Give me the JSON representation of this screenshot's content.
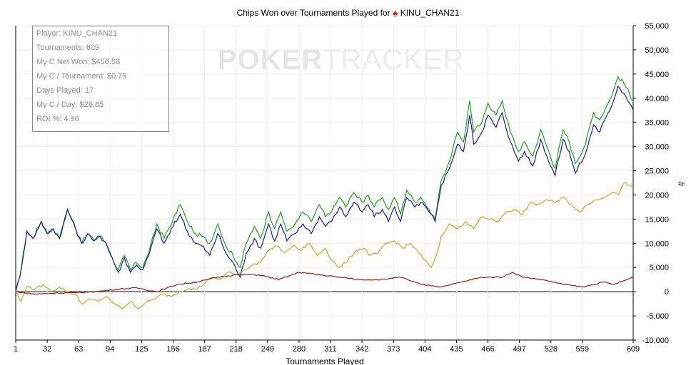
{
  "title_prefix": "Chips Won over Tournaments Played for",
  "player_name": "KINU_CHAN21",
  "suit_icon": "spade-icon",
  "watermark": {
    "bold": "POKER",
    "thin": "TRACKER"
  },
  "stats": [
    "Player: KINU_CHAN21",
    "Tournaments: 609",
    "My C Net Won: $456.53",
    "My C / Tournament: $0.75",
    "Days Played: 17",
    "My C / Day: $26.85",
    "ROI %: 4.96"
  ],
  "chart_data": {
    "type": "line",
    "title": "Chips Won over Tournaments Played for KINU_CHAN21",
    "xlabel": "Tournaments Played",
    "ylabel": "#",
    "xlim": [
      1,
      609
    ],
    "ylim": [
      -10000,
      55000
    ],
    "x_ticks": [
      1,
      32,
      63,
      94,
      125,
      156,
      187,
      218,
      249,
      280,
      311,
      342,
      373,
      404,
      435,
      466,
      497,
      528,
      559,
      609
    ],
    "y_ticks": [
      -10000,
      -5000,
      0,
      5000,
      10000,
      15000,
      20000,
      25000,
      30000,
      35000,
      40000,
      45000,
      50000,
      55000
    ],
    "y_tick_labels": [
      "-10,000",
      "-5,000",
      "0",
      "5,000",
      "10,000",
      "15,000",
      "20,000",
      "25,000",
      "30,000",
      "35,000",
      "40,000",
      "45,000",
      "50,000",
      "55,000"
    ],
    "grid": true,
    "series": [
      {
        "color": "#1aa31a",
        "points": [
          [
            1,
            0
          ],
          [
            5,
            3000
          ],
          [
            12,
            12500
          ],
          [
            18,
            11000
          ],
          [
            26,
            14500
          ],
          [
            32,
            12000
          ],
          [
            38,
            13000
          ],
          [
            44,
            11000
          ],
          [
            52,
            17000
          ],
          [
            60,
            13000
          ],
          [
            66,
            10000
          ],
          [
            72,
            12000
          ],
          [
            78,
            10500
          ],
          [
            84,
            11500
          ],
          [
            90,
            10000
          ],
          [
            96,
            7000
          ],
          [
            102,
            4500
          ],
          [
            108,
            7500
          ],
          [
            114,
            4500
          ],
          [
            120,
            6000
          ],
          [
            126,
            5000
          ],
          [
            132,
            8000
          ],
          [
            140,
            14000
          ],
          [
            147,
            11000
          ],
          [
            156,
            15000
          ],
          [
            163,
            18000
          ],
          [
            170,
            14500
          ],
          [
            178,
            12000
          ],
          [
            184,
            11500
          ],
          [
            192,
            10000
          ],
          [
            200,
            14000
          ],
          [
            208,
            9500
          ],
          [
            215,
            7500
          ],
          [
            222,
            5000
          ],
          [
            228,
            10000
          ],
          [
            236,
            13500
          ],
          [
            242,
            11000
          ],
          [
            250,
            16500
          ],
          [
            256,
            13000
          ],
          [
            262,
            16500
          ],
          [
            268,
            12500
          ],
          [
            276,
            14000
          ],
          [
            284,
            16500
          ],
          [
            292,
            14500
          ],
          [
            300,
            18000
          ],
          [
            306,
            15500
          ],
          [
            312,
            16500
          ],
          [
            320,
            19500
          ],
          [
            326,
            17500
          ],
          [
            334,
            20500
          ],
          [
            342,
            18500
          ],
          [
            348,
            20000
          ],
          [
            354,
            17500
          ],
          [
            362,
            19500
          ],
          [
            368,
            17000
          ],
          [
            374,
            19500
          ],
          [
            380,
            16000
          ],
          [
            386,
            21000
          ],
          [
            394,
            18500
          ],
          [
            400,
            19500
          ],
          [
            408,
            17000
          ],
          [
            414,
            15000
          ],
          [
            420,
            23000
          ],
          [
            428,
            27000
          ],
          [
            436,
            33000
          ],
          [
            442,
            31000
          ],
          [
            448,
            39500
          ],
          [
            452,
            33000
          ],
          [
            460,
            35000
          ],
          [
            466,
            39000
          ],
          [
            474,
            36500
          ],
          [
            480,
            39500
          ],
          [
            488,
            33000
          ],
          [
            496,
            29000
          ],
          [
            502,
            31000
          ],
          [
            510,
            28000
          ],
          [
            518,
            33500
          ],
          [
            524,
            30000
          ],
          [
            532,
            25500
          ],
          [
            540,
            33500
          ],
          [
            546,
            31000
          ],
          [
            552,
            26500
          ],
          [
            562,
            30500
          ],
          [
            570,
            37000
          ],
          [
            576,
            35500
          ],
          [
            582,
            38000
          ],
          [
            588,
            40500
          ],
          [
            594,
            44500
          ],
          [
            600,
            43000
          ],
          [
            609,
            39500
          ]
        ]
      },
      {
        "color": "#1a1a9c",
        "points": [
          [
            1,
            0
          ],
          [
            5,
            3000
          ],
          [
            12,
            12500
          ],
          [
            18,
            11000
          ],
          [
            26,
            14500
          ],
          [
            32,
            12000
          ],
          [
            38,
            13000
          ],
          [
            44,
            11000
          ],
          [
            52,
            17000
          ],
          [
            60,
            13000
          ],
          [
            66,
            10000
          ],
          [
            72,
            12000
          ],
          [
            78,
            10500
          ],
          [
            84,
            11500
          ],
          [
            90,
            10000
          ],
          [
            96,
            7000
          ],
          [
            102,
            4000
          ],
          [
            108,
            7000
          ],
          [
            114,
            4000
          ],
          [
            120,
            5500
          ],
          [
            126,
            4500
          ],
          [
            132,
            7500
          ],
          [
            140,
            13000
          ],
          [
            147,
            10000
          ],
          [
            156,
            13500
          ],
          [
            163,
            16000
          ],
          [
            170,
            12500
          ],
          [
            178,
            10000
          ],
          [
            184,
            9500
          ],
          [
            192,
            7500
          ],
          [
            200,
            12000
          ],
          [
            208,
            8000
          ],
          [
            215,
            6000
          ],
          [
            222,
            3000
          ],
          [
            228,
            8000
          ],
          [
            236,
            11000
          ],
          [
            242,
            9000
          ],
          [
            250,
            14000
          ],
          [
            256,
            10500
          ],
          [
            262,
            14000
          ],
          [
            268,
            10500
          ],
          [
            276,
            12000
          ],
          [
            284,
            14000
          ],
          [
            292,
            12000
          ],
          [
            300,
            15500
          ],
          [
            306,
            13500
          ],
          [
            312,
            14500
          ],
          [
            320,
            17500
          ],
          [
            326,
            15500
          ],
          [
            334,
            18500
          ],
          [
            342,
            16500
          ],
          [
            348,
            18000
          ],
          [
            354,
            15500
          ],
          [
            362,
            17000
          ],
          [
            368,
            14500
          ],
          [
            374,
            17500
          ],
          [
            380,
            14500
          ],
          [
            386,
            19500
          ],
          [
            394,
            17500
          ],
          [
            400,
            18500
          ],
          [
            408,
            16500
          ],
          [
            414,
            14500
          ],
          [
            420,
            22000
          ],
          [
            428,
            25500
          ],
          [
            436,
            30500
          ],
          [
            442,
            29000
          ],
          [
            448,
            36500
          ],
          [
            452,
            30500
          ],
          [
            460,
            33000
          ],
          [
            466,
            36500
          ],
          [
            474,
            34000
          ],
          [
            480,
            37000
          ],
          [
            488,
            31000
          ],
          [
            496,
            27000
          ],
          [
            502,
            29000
          ],
          [
            510,
            26000
          ],
          [
            518,
            31500
          ],
          [
            524,
            28000
          ],
          [
            532,
            24000
          ],
          [
            540,
            31500
          ],
          [
            546,
            29000
          ],
          [
            552,
            24500
          ],
          [
            562,
            28500
          ],
          [
            570,
            34500
          ],
          [
            576,
            33000
          ],
          [
            582,
            36000
          ],
          [
            588,
            38500
          ],
          [
            594,
            42500
          ],
          [
            600,
            41000
          ],
          [
            609,
            37500
          ]
        ]
      },
      {
        "color": "#b1b128",
        "points": [
          [
            1,
            0
          ],
          [
            6,
            -2000
          ],
          [
            12,
            1000
          ],
          [
            20,
            500
          ],
          [
            28,
            1500
          ],
          [
            36,
            0
          ],
          [
            44,
            1000
          ],
          [
            52,
            0
          ],
          [
            60,
            -500
          ],
          [
            66,
            -2500
          ],
          [
            74,
            -1500
          ],
          [
            82,
            -2000
          ],
          [
            90,
            -1000
          ],
          [
            98,
            -2500
          ],
          [
            106,
            -3500
          ],
          [
            114,
            -2000
          ],
          [
            122,
            -3500
          ],
          [
            130,
            -2000
          ],
          [
            138,
            -1500
          ],
          [
            146,
            -500
          ],
          [
            154,
            -1000
          ],
          [
            162,
            0
          ],
          [
            170,
            500
          ],
          [
            178,
            500
          ],
          [
            186,
            1500
          ],
          [
            194,
            3000
          ],
          [
            202,
            2500
          ],
          [
            210,
            4000
          ],
          [
            218,
            3500
          ],
          [
            226,
            4500
          ],
          [
            234,
            5500
          ],
          [
            242,
            6000
          ],
          [
            250,
            8500
          ],
          [
            258,
            9500
          ],
          [
            266,
            8000
          ],
          [
            274,
            9500
          ],
          [
            282,
            8500
          ],
          [
            290,
            10000
          ],
          [
            298,
            7500
          ],
          [
            306,
            9000
          ],
          [
            312,
            6500
          ],
          [
            320,
            5000
          ],
          [
            328,
            6500
          ],
          [
            336,
            8500
          ],
          [
            344,
            9000
          ],
          [
            350,
            7500
          ],
          [
            358,
            8000
          ],
          [
            366,
            10000
          ],
          [
            374,
            10500
          ],
          [
            382,
            9000
          ],
          [
            390,
            10000
          ],
          [
            398,
            8000
          ],
          [
            404,
            6500
          ],
          [
            410,
            5000
          ],
          [
            416,
            8000
          ],
          [
            420,
            11500
          ],
          [
            428,
            14000
          ],
          [
            436,
            13000
          ],
          [
            444,
            14500
          ],
          [
            452,
            13000
          ],
          [
            460,
            15500
          ],
          [
            468,
            15000
          ],
          [
            476,
            14500
          ],
          [
            484,
            16500
          ],
          [
            492,
            17000
          ],
          [
            500,
            16000
          ],
          [
            508,
            18500
          ],
          [
            516,
            18000
          ],
          [
            524,
            19000
          ],
          [
            532,
            18500
          ],
          [
            540,
            19500
          ],
          [
            548,
            18000
          ],
          [
            556,
            16500
          ],
          [
            564,
            18000
          ],
          [
            572,
            19000
          ],
          [
            580,
            19500
          ],
          [
            588,
            20500
          ],
          [
            594,
            20000
          ],
          [
            600,
            22500
          ],
          [
            609,
            21500
          ]
        ]
      },
      {
        "color": "#9c1a1a",
        "points": [
          [
            1,
            0
          ],
          [
            20,
            -500
          ],
          [
            40,
            -300
          ],
          [
            60,
            -200
          ],
          [
            80,
            0
          ],
          [
            100,
            500
          ],
          [
            120,
            800
          ],
          [
            140,
            0
          ],
          [
            160,
            1500
          ],
          [
            180,
            2000
          ],
          [
            200,
            3000
          ],
          [
            218,
            3500
          ],
          [
            240,
            3500
          ],
          [
            260,
            2500
          ],
          [
            280,
            4000
          ],
          [
            300,
            3500
          ],
          [
            320,
            3000
          ],
          [
            340,
            2500
          ],
          [
            360,
            2500
          ],
          [
            380,
            3000
          ],
          [
            400,
            1500
          ],
          [
            420,
            1000
          ],
          [
            440,
            2000
          ],
          [
            460,
            3000
          ],
          [
            480,
            3000
          ],
          [
            490,
            4000
          ],
          [
            500,
            3000
          ],
          [
            520,
            2500
          ],
          [
            540,
            1500
          ],
          [
            560,
            1000
          ],
          [
            580,
            2000
          ],
          [
            590,
            1500
          ],
          [
            609,
            3000
          ]
        ]
      }
    ]
  }
}
